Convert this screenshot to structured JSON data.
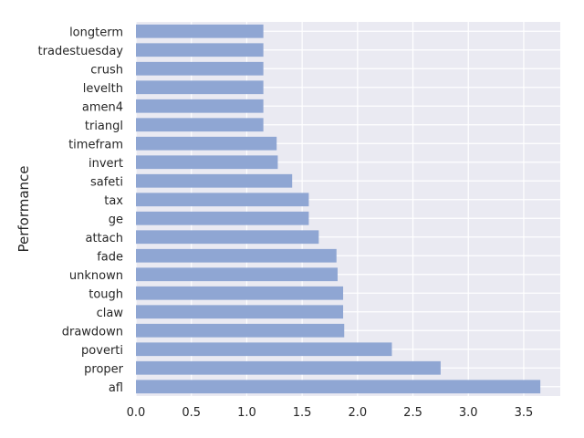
{
  "chart_data": {
    "type": "bar",
    "orientation": "horizontal",
    "categories": [
      "longterm",
      "tradestuesday",
      "crush",
      "levelth",
      "amen4",
      "triangl",
      "timefram",
      "invert",
      "safeti",
      "tax",
      "ge",
      "attach",
      "fade",
      "unknown",
      "tough",
      "claw",
      "drawdown",
      "poverti",
      "proper",
      "afl"
    ],
    "values": [
      1.15,
      1.15,
      1.15,
      1.15,
      1.15,
      1.15,
      1.27,
      1.28,
      1.41,
      1.56,
      1.56,
      1.65,
      1.81,
      1.82,
      1.87,
      1.87,
      1.88,
      2.31,
      2.75,
      3.65
    ],
    "xticks": [
      "0.0",
      "0.5",
      "1.0",
      "1.5",
      "2.0",
      "2.5",
      "3.0",
      "3.5"
    ],
    "xlim": [
      0,
      3.83
    ],
    "xlabel": "",
    "ylabel": "Performance",
    "grid": true,
    "colors": {
      "bar": "#8fa6d3",
      "plot_background": "#eaeaf2",
      "grid": "#ffffff",
      "text": "#262626"
    }
  }
}
